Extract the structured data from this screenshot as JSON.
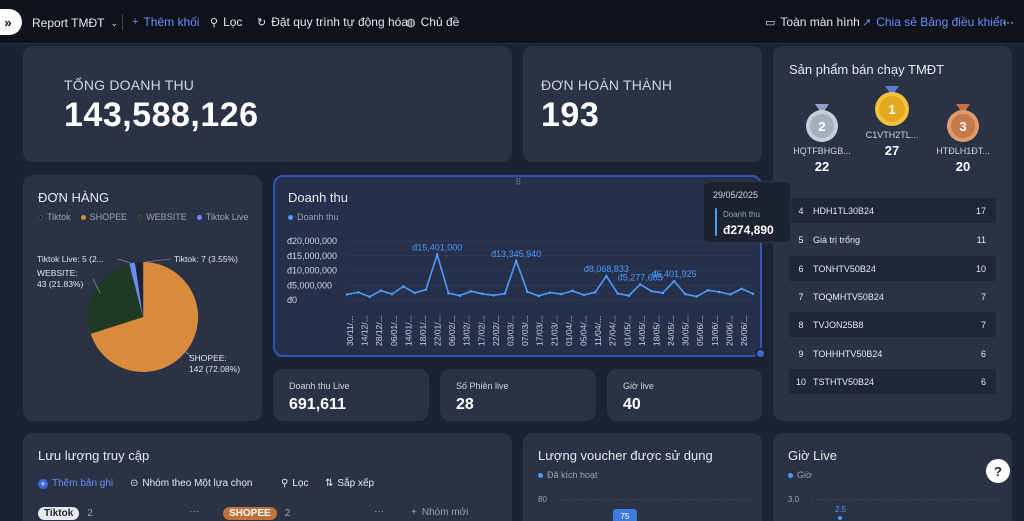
{
  "topbar": {
    "report_title": "Report TMĐT",
    "add_block": "Thêm khối",
    "filter": "Lọc",
    "automation": "Đặt quy trình tự động hóa",
    "theme": "Chủ đề",
    "fullscreen": "Toàn màn hình",
    "share": "Chia sẻ Bảng điều khiển",
    "more": "···"
  },
  "kpi_total": {
    "label": "TỔNG DOANH THU",
    "value": "143,588,126"
  },
  "kpi_orders": {
    "label": "ĐƠN HOÀN THÀNH",
    "value": "193"
  },
  "bestsellers": {
    "title": "Sản phẩm bán chạy TMĐT",
    "top3": [
      {
        "rank": "2",
        "name": "HQTFBHGB...",
        "value": "22"
      },
      {
        "rank": "1",
        "name": "C1VTH2TL...",
        "value": "27"
      },
      {
        "rank": "3",
        "name": "HTĐLH1ĐT...",
        "value": "20"
      }
    ],
    "rows": [
      {
        "rank": "4",
        "name": "HDH1TL30B24",
        "value": "17"
      },
      {
        "rank": "5",
        "name": "Giá trị trống",
        "value": "11"
      },
      {
        "rank": "6",
        "name": "TONHTV50B24",
        "value": "10"
      },
      {
        "rank": "7",
        "name": "TOQMHTV50B24",
        "value": "7"
      },
      {
        "rank": "8",
        "name": "TVJON25B8",
        "value": "7"
      },
      {
        "rank": "9",
        "name": "TOHHHTV50B24",
        "value": "6"
      },
      {
        "rank": "10",
        "name": "TSTHTV50B24",
        "value": "6"
      }
    ]
  },
  "orders_pie": {
    "title": "ĐƠN HÀNG",
    "legend": [
      "Tiktok",
      "SHOPEE",
      "WEBSITE",
      "Tiktok Live"
    ],
    "colors": {
      "tiktok": "#1c2333",
      "shopee": "#d98a3a",
      "website": "#1f3a24",
      "tiktok_live": "#6a8cff"
    },
    "labels": {
      "tiktok_live": "Tiktok Live: 5 (2...",
      "tiktok": "Tiktok: 7 (3.55%)",
      "website_1": "WEBSITE:",
      "website_2": "43 (21.83%)",
      "shopee_1": "SHOPEE:",
      "shopee_2": "142 (72.08%)"
    }
  },
  "revenue_chart": {
    "title": "Doanh thu",
    "series_name": "Doanh thu",
    "y_ticks": [
      "đ20,000,000",
      "đ15,000,000",
      "đ10,000,000",
      "đ5,000,000",
      "đ0"
    ],
    "x_ticks": [
      "30/11/...",
      "14/12/...",
      "28/12/...",
      "06/01/...",
      "14/01/...",
      "18/01/...",
      "22/01/...",
      "06/02/...",
      "13/02/...",
      "17/02/...",
      "22/02/...",
      "03/03/...",
      "07/03/...",
      "17/03/...",
      "21/03/...",
      "01/04/...",
      "05/04/...",
      "11/04/...",
      "27/04/...",
      "01/05/...",
      "14/05/...",
      "18/05/...",
      "24/05/...",
      "30/05/...",
      "05/06/...",
      "13/06/...",
      "20/06/...",
      "26/06/..."
    ],
    "peak_labels": [
      "đ15,401,000",
      "đ13,345,940",
      "đ8,068,833",
      "đ6,401,925",
      "đ5,277,685"
    ],
    "tooltip": {
      "date": "29/05/2025",
      "name": "Doanh thu",
      "value": "đ274,890"
    }
  },
  "chart_data": {
    "type": "line",
    "title": "Doanh thu",
    "series": [
      {
        "name": "Doanh thu",
        "values": [
          1.9,
          2.6,
          1.1,
          3.2,
          2.0,
          4.6,
          2.4,
          3.5,
          15.4,
          2.3,
          1.5,
          3.0,
          2.1,
          1.6,
          2.2,
          13.3,
          2.8,
          1.4,
          2.5,
          2.0,
          3.1,
          1.7,
          2.6,
          8.1,
          2.2,
          1.5,
          5.3,
          3.0,
          2.4,
          6.4,
          2.0,
          1.2,
          3.3,
          2.7,
          1.9,
          3.8,
          2.1
        ]
      }
    ],
    "ylim": [
      0,
      20
    ],
    "ylabel": "",
    "xlabel": ""
  },
  "small_kpis": [
    {
      "label": "Doanh thu Live",
      "value": "691,611"
    },
    {
      "label": "Số Phiên live",
      "value": "28"
    },
    {
      "label": "Giờ live",
      "value": "40"
    }
  ],
  "traffic": {
    "title": "Lưu lượng truy cập",
    "add_record": "Thêm bản ghi",
    "group_by": "Nhóm theo Một lựa chọn",
    "filter": "Lọc",
    "sort": "Sắp xếp",
    "groups": [
      {
        "name": "Tiktok",
        "count": "2"
      },
      {
        "name": "SHOPEE",
        "count": "2"
      }
    ],
    "new_group": "Nhóm mới"
  },
  "voucher": {
    "title": "Lượng voucher được sử dụng",
    "legend": "Đã kích hoạt",
    "tick": "80",
    "bar_value": "75"
  },
  "live_hours": {
    "title": "Giờ Live",
    "legend": "Giờ",
    "tick": "3.0",
    "point_value": "2.5"
  }
}
